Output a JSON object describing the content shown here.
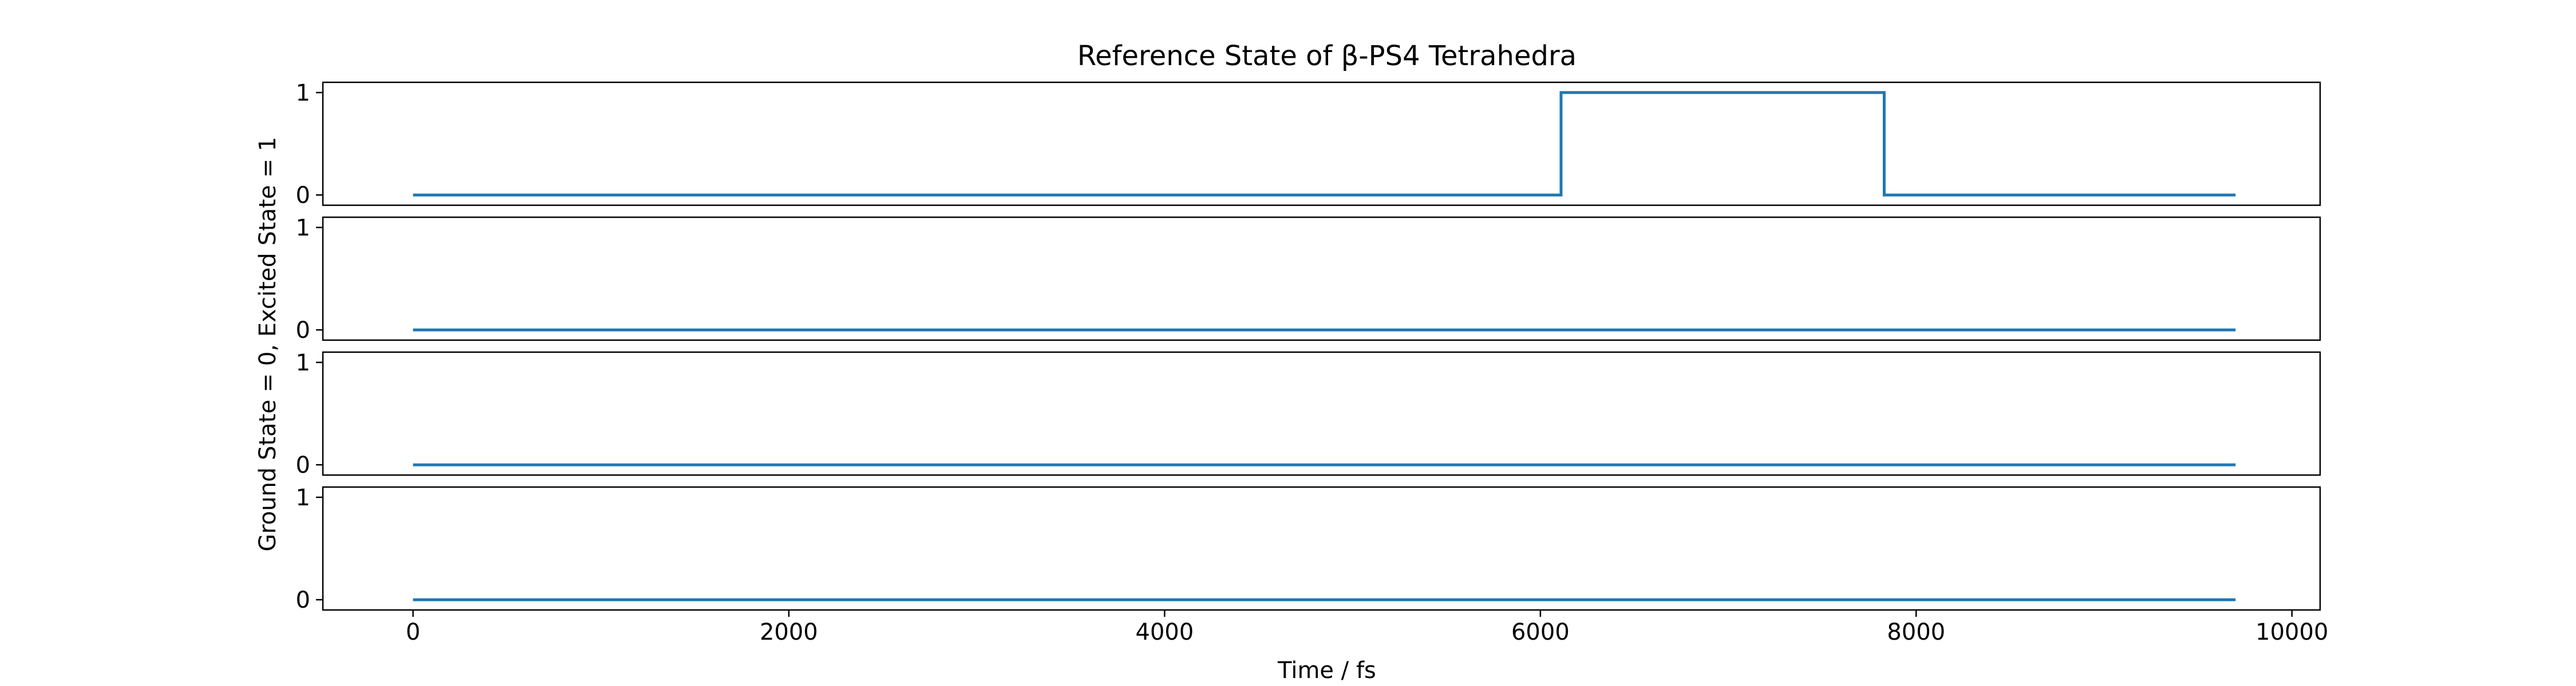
{
  "chart_data": {
    "type": "line",
    "title": "Reference State of β-PS4 Tetrahedra",
    "xlabel": "Time / fs",
    "ylabel": "Ground State = 0, Excited State = 1",
    "xlim": [
      -480,
      10150
    ],
    "ylim": [
      -0.1,
      1.1
    ],
    "xticks": [
      0,
      2000,
      4000,
      6000,
      8000,
      10000
    ],
    "xtick_labels": [
      "0",
      "2000",
      "4000",
      "6000",
      "8000",
      "10000"
    ],
    "yticks": [
      0,
      1
    ],
    "ytick_labels": [
      "0",
      "1"
    ],
    "grid": false,
    "line_color": "#1f77b4",
    "panels": [
      {
        "x": [
          0,
          6110,
          6110,
          7830,
          7830,
          9700
        ],
        "y": [
          0,
          0,
          1,
          1,
          0,
          0
        ]
      },
      {
        "x": [
          0,
          9700
        ],
        "y": [
          0,
          0
        ]
      },
      {
        "x": [
          0,
          9700
        ],
        "y": [
          0,
          0
        ]
      },
      {
        "x": [
          0,
          9700
        ],
        "y": [
          0,
          0
        ]
      }
    ]
  }
}
